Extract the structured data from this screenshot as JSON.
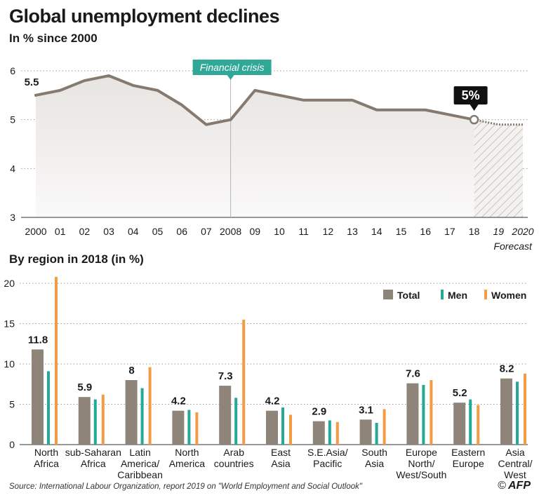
{
  "title": "Global unemployment declines",
  "subtitle_line": "In % since 2000",
  "subtitle_bar": "By region in 2018 (in %)",
  "source": "Source: International Labour Organization, report 2019 on \"World Employment and Social Outlook\"",
  "logo": {
    "copyright": "©",
    "text": "AFP"
  },
  "colors": {
    "line": "#857a70",
    "area": "#eeeceb",
    "total": "#8f847a",
    "men": "#23a996",
    "women": "#f39b45",
    "annotation": "#2fa898",
    "callout": "#111111",
    "grid": "#9a9a9a"
  },
  "chart_data": [
    {
      "type": "line",
      "title": "Global unemployment declines",
      "subtitle": "In % since 2000",
      "x": [
        2000,
        2001,
        2002,
        2003,
        2004,
        2005,
        2006,
        2007,
        2008,
        2009,
        2010,
        2011,
        2012,
        2013,
        2014,
        2015,
        2016,
        2017,
        2018,
        2019,
        2020
      ],
      "x_tick_labels": [
        "2000",
        "01",
        "02",
        "03",
        "04",
        "05",
        "06",
        "07",
        "2008",
        "09",
        "10",
        "11",
        "12",
        "13",
        "14",
        "15",
        "16",
        "17",
        "18",
        "19",
        "2020"
      ],
      "y": [
        5.5,
        5.6,
        5.8,
        5.9,
        5.7,
        5.6,
        5.3,
        4.9,
        5.0,
        5.6,
        5.5,
        5.4,
        5.4,
        5.4,
        5.2,
        5.2,
        5.2,
        5.1,
        5.0,
        4.9,
        4.9
      ],
      "forecast_from": 2018,
      "forecast_label": "Forecast",
      "ylim": [
        3,
        6
      ],
      "yticks": [
        3,
        4,
        5,
        6
      ],
      "grid": true,
      "annotations": [
        {
          "x": 2000,
          "y": 5.5,
          "text": "5.5"
        },
        {
          "x": 2008,
          "text": "Financial crisis"
        },
        {
          "x": 2018,
          "y": 5.0,
          "text": "5%"
        }
      ]
    },
    {
      "type": "bar",
      "title": "By region in 2018 (in %)",
      "categories": [
        [
          "North",
          "Africa"
        ],
        [
          "sub-Saharan",
          "Africa"
        ],
        [
          "Latin",
          "America/",
          "Caribbean"
        ],
        [
          "North",
          "America"
        ],
        [
          "Arab",
          "countries"
        ],
        [
          "East",
          "Asia"
        ],
        [
          "S.E.Asia/",
          "Pacific"
        ],
        [
          "South",
          "Asia"
        ],
        [
          "Europe",
          "North/",
          "West/South"
        ],
        [
          "Eastern",
          "Europe"
        ],
        [
          "Asia",
          "Central/",
          "West"
        ]
      ],
      "series": [
        {
          "name": "Total",
          "values": [
            11.8,
            5.9,
            8,
            4.2,
            7.3,
            4.2,
            2.9,
            3.1,
            7.6,
            5.2,
            8.2
          ]
        },
        {
          "name": "Men",
          "values": [
            9.1,
            5.6,
            7.0,
            4.3,
            5.8,
            4.6,
            3.0,
            2.7,
            7.4,
            5.6,
            7.8
          ]
        },
        {
          "name": "Women",
          "values": [
            20.8,
            6.2,
            9.6,
            4.0,
            15.5,
            3.7,
            2.8,
            4.4,
            8.0,
            4.9,
            8.8
          ]
        }
      ],
      "value_labels": [
        "11.8",
        "5.9",
        "8",
        "4.2",
        "7.3",
        "4.2",
        "2.9",
        "3.1",
        "7.6",
        "5.2",
        "8.2"
      ],
      "ylim": [
        0,
        20
      ],
      "yticks": [
        0,
        5,
        10,
        15,
        20
      ],
      "grid": true,
      "legend": {
        "position": "top-right",
        "items": [
          "Total",
          "Men",
          "Women"
        ]
      }
    }
  ]
}
